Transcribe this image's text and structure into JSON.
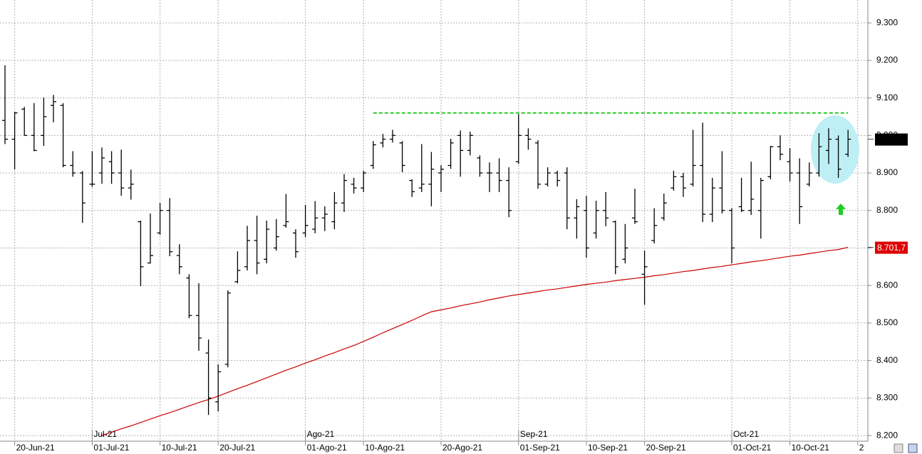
{
  "chart_data": {
    "type": "ohlc",
    "categories": [
      "2021-06-18",
      "2021-06-21",
      "2021-06-22",
      "2021-06-23",
      "2021-06-24",
      "2021-06-25",
      "2021-06-28",
      "2021-06-29",
      "2021-06-30",
      "2021-07-01",
      "2021-07-02",
      "2021-07-05",
      "2021-07-06",
      "2021-07-07",
      "2021-07-08",
      "2021-07-09",
      "2021-07-12",
      "2021-07-13",
      "2021-07-14",
      "2021-07-15",
      "2021-07-16",
      "2021-07-19",
      "2021-07-20",
      "2021-07-21",
      "2021-07-22",
      "2021-07-23",
      "2021-07-26",
      "2021-07-27",
      "2021-07-28",
      "2021-07-29",
      "2021-07-30",
      "2021-08-02",
      "2021-08-03",
      "2021-08-04",
      "2021-08-05",
      "2021-08-06",
      "2021-08-09",
      "2021-08-10",
      "2021-08-11",
      "2021-08-12",
      "2021-08-13",
      "2021-08-16",
      "2021-08-17",
      "2021-08-18",
      "2021-08-19",
      "2021-08-20",
      "2021-08-23",
      "2021-08-24",
      "2021-08-25",
      "2021-08-26",
      "2021-08-27",
      "2021-08-30",
      "2021-08-31",
      "2021-09-01",
      "2021-09-02",
      "2021-09-03",
      "2021-09-06",
      "2021-09-07",
      "2021-09-08",
      "2021-09-09",
      "2021-09-10",
      "2021-09-13",
      "2021-09-14",
      "2021-09-15",
      "2021-09-16",
      "2021-09-17",
      "2021-09-20",
      "2021-09-21",
      "2021-09-22",
      "2021-09-23",
      "2021-09-24",
      "2021-09-27",
      "2021-09-28",
      "2021-09-29",
      "2021-09-30",
      "2021-10-01",
      "2021-10-04",
      "2021-10-05",
      "2021-10-06",
      "2021-10-07",
      "2021-10-08",
      "2021-10-11",
      "2021-10-12",
      "2021-10-13",
      "2021-10-14",
      "2021-10-15",
      "2021-10-18",
      "2021-10-19"
    ],
    "open": [
      9040,
      8990,
      9070,
      9000,
      9000,
      9080,
      9080,
      8920,
      8900,
      8870,
      8900,
      8930,
      8900,
      8860,
      8770,
      8660,
      8740,
      8800,
      8680,
      8620,
      8520,
      8420,
      8290,
      8390,
      8610,
      8650,
      8720,
      8670,
      8700,
      8760,
      8740,
      8740,
      8750,
      8780,
      8770,
      8820,
      8870,
      8860,
      8920,
      8980,
      8990,
      8980,
      8880,
      8860,
      8870,
      8900,
      8920,
      9000,
      8960,
      8940,
      8900,
      8900,
      8880,
      8930,
      9000,
      8980,
      8870,
      8900,
      8900,
      8780,
      8800,
      8740,
      8800,
      8770,
      8670,
      8780,
      8630,
      8720,
      8780,
      8860,
      8890,
      8870,
      8920,
      8790,
      8860,
      8800,
      8810,
      8800,
      8800,
      8890,
      8970,
      8930,
      8900,
      8870,
      8900,
      8960,
      8990,
      8950
    ],
    "high": [
      9187,
      9063,
      9076,
      9086,
      9101,
      9108,
      9086,
      8958,
      8905,
      8958,
      8968,
      8958,
      8962,
      8909,
      8773,
      8792,
      8820,
      8833,
      8710,
      8630,
      8606,
      8456,
      8390,
      8587,
      8691,
      8759,
      8786,
      8773,
      8777,
      8844,
      8750,
      8815,
      8825,
      8811,
      8849,
      8897,
      8887,
      8906,
      8985,
      9004,
      9015,
      8985,
      8883,
      8977,
      8956,
      8921,
      8991,
      9013,
      9010,
      8947,
      8928,
      8939,
      8915,
      9057,
      9019,
      8987,
      8915,
      8906,
      8915,
      8830,
      8839,
      8826,
      8849,
      8773,
      8764,
      8858,
      8693,
      8806,
      8845,
      8906,
      8900,
      9015,
      9034,
      8887,
      8958,
      8806,
      8887,
      8930,
      8887,
      8972,
      9000,
      8966,
      8939,
      8928,
      9006,
      9019,
      9000,
      9015
    ],
    "low": [
      8977,
      8909,
      9000,
      8958,
      8972,
      9035,
      8915,
      8890,
      8767,
      8863,
      8871,
      8871,
      8839,
      8829,
      8598,
      8659,
      8735,
      8678,
      8630,
      8513,
      8426,
      8255,
      8264,
      8382,
      8606,
      8640,
      8630,
      8659,
      8693,
      8754,
      8674,
      8729,
      8739,
      8745,
      8750,
      8796,
      8845,
      8849,
      8911,
      8968,
      8981,
      8902,
      8836,
      8849,
      8811,
      8849,
      8911,
      8890,
      8947,
      8890,
      8849,
      8849,
      8782,
      8924,
      8962,
      8858,
      8864,
      8864,
      8750,
      8725,
      8674,
      8725,
      8758,
      8630,
      8659,
      8764,
      8549,
      8712,
      8773,
      8853,
      8836,
      8864,
      8769,
      8769,
      8792,
      8659,
      8796,
      8788,
      8725,
      8883,
      8934,
      8877,
      8764,
      8864,
      8890,
      8924,
      8887,
      8943
    ],
    "close": [
      8990,
      9060,
      9000,
      8960,
      9050,
      9090,
      8920,
      8900,
      8820,
      8870,
      8940,
      8900,
      8860,
      8870,
      8650,
      8680,
      8800,
      8690,
      8650,
      8520,
      8460,
      8300,
      8370,
      8580,
      8640,
      8720,
      8660,
      8750,
      8730,
      8770,
      8690,
      8760,
      8780,
      8790,
      8820,
      8880,
      8860,
      8900,
      8975,
      8990,
      9000,
      8920,
      8850,
      8870,
      8910,
      8910,
      8980,
      8960,
      9000,
      8900,
      8900,
      8880,
      8800,
      9000,
      8990,
      8870,
      8900,
      8880,
      8780,
      8810,
      8700,
      8800,
      8780,
      8650,
      8700,
      8770,
      8650,
      8760,
      8820,
      8890,
      8860,
      8920,
      8790,
      8860,
      8800,
      8700,
      8800,
      8830,
      8880,
      8970,
      8950,
      8900,
      8810,
      8900,
      8970,
      8990,
      8910,
      8990
    ],
    "bar_color": "#000000",
    "moving_average": {
      "color": "#cc0000",
      "values": [
        null,
        null,
        null,
        null,
        null,
        null,
        null,
        null,
        null,
        null,
        8200,
        8209,
        8218,
        8226,
        8235,
        8244,
        8253,
        8261,
        8270,
        8279,
        8288,
        8296,
        8305,
        8315,
        8325,
        8334,
        8344,
        8354,
        8364,
        8374,
        8383,
        8393,
        8402,
        8412,
        8421,
        8431,
        8440,
        8451,
        8462,
        8474,
        8485,
        8496,
        8507,
        8519,
        8530,
        8535,
        8540,
        8546,
        8551,
        8556,
        8562,
        8567,
        8572,
        8576,
        8580,
        8584,
        8588,
        8591,
        8595,
        8599,
        8603,
        8606,
        8609,
        8613,
        8616,
        8619,
        8622,
        8626,
        8629,
        8633,
        8637,
        8640,
        8644,
        8648,
        8651,
        8655,
        8659,
        8663,
        8666,
        8670,
        8674,
        8678,
        8681,
        8685,
        8689,
        8693,
        8696,
        8701.7
      ]
    },
    "resistance": {
      "value": 9060,
      "from": "2021-08-11",
      "to": "2021-10-19",
      "color": "#22cc22"
    },
    "price_tags": [
      {
        "value": 8990,
        "color": "#000000"
      },
      {
        "value": 8701.7,
        "label": "8.701,7",
        "color": "#dd0000"
      }
    ],
    "ylim": [
      8185,
      9361
    ],
    "yticks": [
      {
        "value": 8200,
        "label": "8.200"
      },
      {
        "value": 8300,
        "label": "8.300"
      },
      {
        "value": 8400,
        "label": "8.400"
      },
      {
        "value": 8500,
        "label": "8.500"
      },
      {
        "value": 8600,
        "label": "8.600"
      },
      {
        "value": 8700,
        "label": "8.700"
      },
      {
        "value": 8800,
        "label": "8.800"
      },
      {
        "value": 8900,
        "label": "8.900"
      },
      {
        "value": 9000,
        "label": "9.000"
      },
      {
        "value": 9100,
        "label": "9.100"
      },
      {
        "value": 9200,
        "label": "9.200"
      },
      {
        "value": 9300,
        "label": "9.300"
      }
    ],
    "xticks": [
      {
        "value": "2021-06-20",
        "label": "20-Jun-21"
      },
      {
        "value": "2021-07-01",
        "label": "01-Jul-21"
      },
      {
        "value": "2021-07-10",
        "label": "10-Jul-21"
      },
      {
        "value": "2021-07-20",
        "label": "20-Jul-21"
      },
      {
        "value": "2021-08-01",
        "label": "01-Ago-21"
      },
      {
        "value": "2021-08-10",
        "label": "10-Ago-21"
      },
      {
        "value": "2021-08-20",
        "label": "20-Ago-21"
      },
      {
        "value": "2021-09-01",
        "label": "01-Sep-21"
      },
      {
        "value": "2021-09-10",
        "label": "10-Sep-21"
      },
      {
        "value": "2021-09-20",
        "label": "20-Sep-21"
      },
      {
        "value": "2021-10-01",
        "label": "01-Oct-21"
      },
      {
        "value": "2021-10-10",
        "label": "10-Oct-21"
      },
      {
        "value": "2021-10-20",
        "label": "2"
      }
    ],
    "month_labels": [
      {
        "value": "2021-07-01",
        "label": "Jul-21"
      },
      {
        "value": "2021-08-01",
        "label": "Ago-21"
      },
      {
        "value": "2021-09-01",
        "label": "Sep-21"
      },
      {
        "value": "2021-10-01",
        "label": "Oct-21"
      }
    ],
    "grid": true
  }
}
